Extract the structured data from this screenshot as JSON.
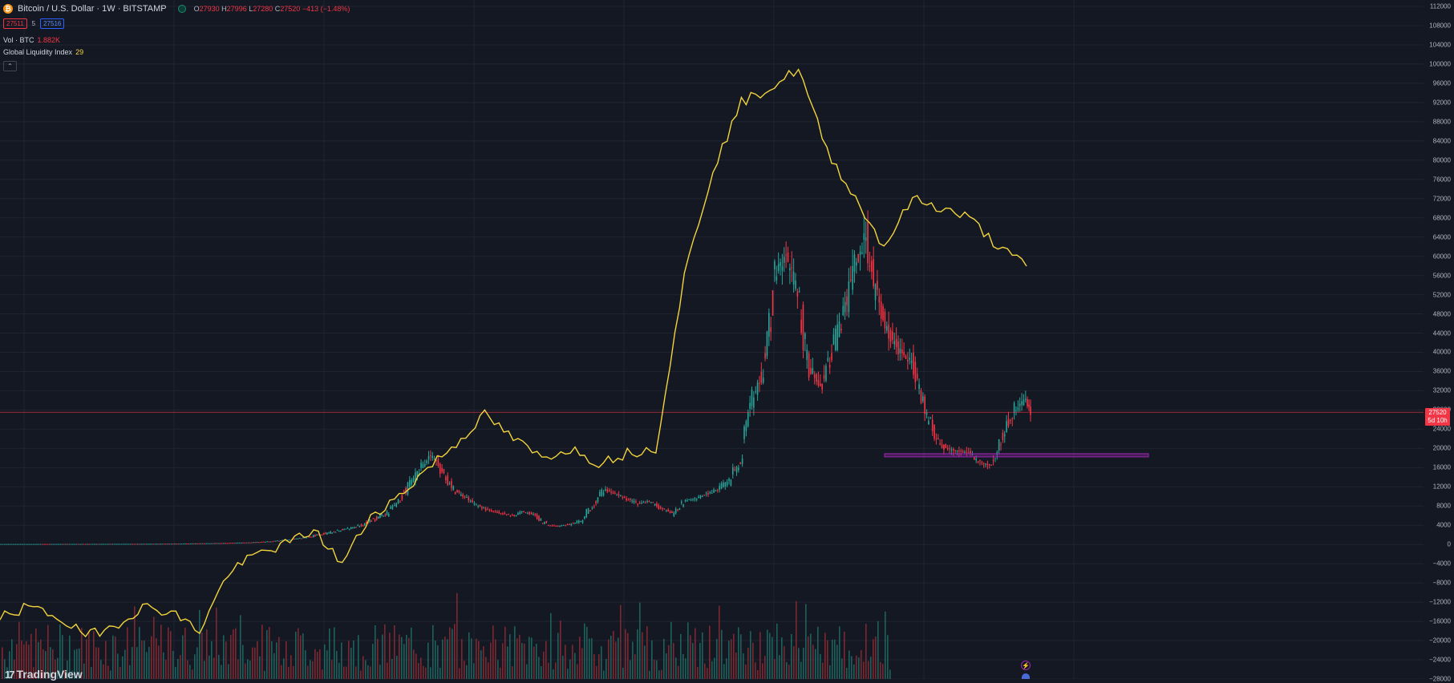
{
  "header": {
    "symbol_icon": "bitcoin-icon",
    "symbol": "Bitcoin / U.S. Dollar · 1W · BITSTAMP",
    "ohlc": {
      "o_label": "O",
      "o": "27930",
      "h_label": "H",
      "h": "27996",
      "l_label": "L",
      "l": "27280",
      "c_label": "C",
      "c": "27520",
      "change": "−413 (−1.48%)"
    },
    "sell_price": "27511",
    "spread": "5",
    "buy_price": "27516"
  },
  "indicators": [
    {
      "name": "Vol · BTC",
      "value": "1.882K"
    },
    {
      "name": "Global Liquidity Index",
      "value": "29"
    }
  ],
  "colors": {
    "background": "#141823",
    "up": "#26a69a",
    "down": "#f23645",
    "liquidity": "#f2d43d",
    "zone": "#9c27b0",
    "grid": "#1f2433"
  },
  "last_price": {
    "value": "27520",
    "countdown": "5d 10h"
  },
  "branding": "TradingView",
  "chart_data": {
    "type": "line",
    "title": "Bitcoin / U.S. Dollar · 1W · BITSTAMP",
    "y_axis_ticks": [
      112000,
      108000,
      104000,
      100000,
      96000,
      92000,
      88000,
      84000,
      80000,
      76000,
      72000,
      68000,
      64000,
      60000,
      56000,
      52000,
      48000,
      44000,
      40000,
      36000,
      32000,
      28000,
      24000,
      20000,
      16000,
      12000,
      8000,
      4000,
      0,
      -4000,
      -8000,
      -12000,
      -16000,
      -20000,
      -24000,
      -28000
    ],
    "ylim": [
      -28000,
      112000
    ],
    "grid": true,
    "series": [
      {
        "name": "Bitcoin / U.S. Dollar",
        "style": "candlestick",
        "x": [
          0,
          0.06,
          0.12,
          0.18,
          0.24,
          0.28,
          0.32,
          0.36,
          0.4,
          0.44,
          0.47,
          0.5,
          0.53,
          0.56,
          0.59,
          0.62,
          0.65,
          0.68,
          0.7,
          0.72,
          0.74,
          0.76,
          0.78,
          0.8,
          0.82,
          0.84,
          0.86,
          0.88,
          0.9,
          0.92,
          0.94,
          0.96,
          0.98,
          1.0,
          1.02,
          1.04,
          1.06,
          1.08,
          1.1,
          1.12,
          1.14,
          1.16,
          1.18,
          1.2,
          1.22,
          1.24,
          1.26,
          1.28,
          1.3,
          1.32,
          1.34,
          1.36,
          1.38,
          1.4,
          1.42,
          1.44,
          1.46,
          1.48,
          1.5,
          1.52,
          1.54,
          1.56,
          1.58,
          1.6,
          1.62,
          1.64,
          1.66,
          1.68,
          1.7,
          1.72,
          1.74,
          1.76,
          1.78,
          1.8
        ],
        "close": [
          100,
          110,
          120,
          130,
          150,
          180,
          240,
          320,
          420,
          600,
          900,
          1300,
          2000,
          2800,
          3500,
          4800,
          6500,
          9000,
          12500,
          16500,
          19000,
          14000,
          11000,
          9500,
          8000,
          7000,
          6500,
          6000,
          6800,
          6200,
          4000,
          3800,
          4200,
          5000,
          8000,
          11500,
          10500,
          9500,
          8500,
          9000,
          7500,
          6500,
          9000,
          9500,
          10500,
          11500,
          13500,
          18000,
          29000,
          37000,
          56000,
          60000,
          52000,
          37000,
          33000,
          40000,
          48000,
          58000,
          64000,
          50000,
          44000,
          40000,
          38000,
          30000,
          22000,
          20000,
          19500,
          19000,
          17000,
          16500,
          23000,
          28000,
          30000,
          27500
        ],
        "last_close": 27520,
        "support_zone": [
          18400,
          18900
        ]
      },
      {
        "name": "Global Liquidity Index",
        "style": "line",
        "x": [
          0,
          0.05,
          0.1,
          0.15,
          0.2,
          0.25,
          0.3,
          0.35,
          0.4,
          0.45,
          0.5,
          0.55,
          0.6,
          0.65,
          0.7,
          0.75,
          0.8,
          0.85,
          0.9,
          0.95,
          1.0,
          1.05,
          1.1,
          1.15,
          1.2,
          1.25,
          1.3,
          1.35,
          1.4,
          1.45,
          1.5,
          1.55,
          1.6,
          1.65,
          1.7,
          1.75,
          1.8
        ],
        "values": [
          -15000,
          -13000,
          -15000,
          -19000,
          -17000,
          -13000,
          -14000,
          -18000,
          -6000,
          -2000,
          0,
          3000,
          -4000,
          6000,
          10000,
          16000,
          21000,
          27000,
          22000,
          18000,
          20000,
          17000,
          19000,
          20000,
          56000,
          78000,
          92000,
          95000,
          99000,
          82000,
          72000,
          62000,
          72000,
          70000,
          68000,
          62000,
          58000
        ]
      },
      {
        "name": "Vol · BTC",
        "style": "histogram",
        "last_value": "1.882K"
      }
    ]
  }
}
